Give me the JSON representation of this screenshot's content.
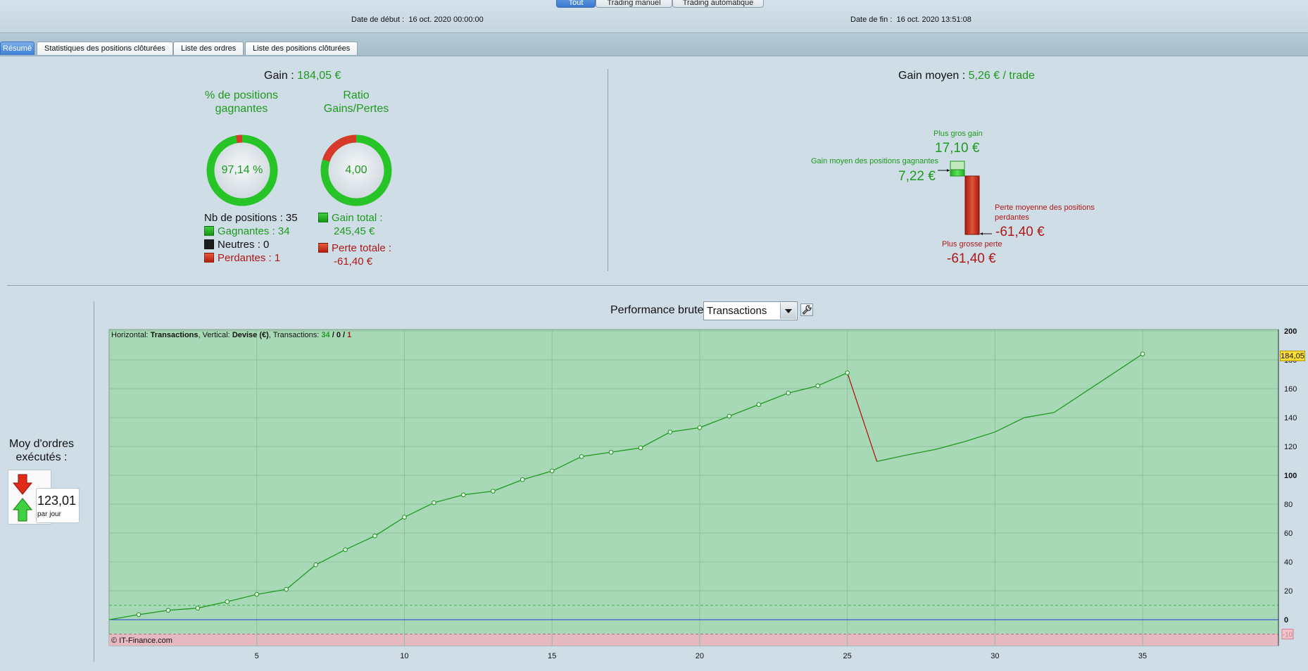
{
  "header": {
    "modes": [
      {
        "label": "Tout",
        "active": true
      },
      {
        "label": "Trading manuel",
        "active": false
      },
      {
        "label": "Trading automatique",
        "active": false
      }
    ],
    "start_label": "Date de début :",
    "start_value": "16 oct. 2020 00:00:00",
    "end_label": "Date de fin :",
    "end_value": "16 oct. 2020 13:51:08"
  },
  "tabs": [
    {
      "label": "Résumé",
      "active": true
    },
    {
      "label": "Statistiques des positions clôturées",
      "active": false
    },
    {
      "label": "Liste des ordres",
      "active": false
    },
    {
      "label": "Liste des positions clôturées",
      "active": false
    }
  ],
  "summary": {
    "gain_label": "Gain :",
    "gain_value": "184,05 €",
    "winpct_title": "% de positions gagnantes",
    "winpct_value": "97,14 %",
    "winpct_fraction": 0.9714,
    "ratio_title": "Ratio Gains/Pertes",
    "ratio_value": "4,00",
    "ratio_loss_fraction": 0.2,
    "nb_positions": "Nb de positions : 35",
    "winners": "Gagnantes : 34",
    "neutral": "Neutres : 0",
    "losers": "Perdantes : 1",
    "gain_total_label": "Gain total :",
    "gain_total_value": "245,45 €",
    "loss_total_label": "Perte totale :",
    "loss_total_value": "-61,40 €",
    "avg_gain_label": "Gain moyen :",
    "avg_gain_value": "5,26 € / trade",
    "biggest_gain_label": "Plus gros gain",
    "biggest_gain_value": "17,10 €",
    "avg_win_label": "Gain moyen des positions gagnantes",
    "avg_win_value": "7,22 €",
    "avg_loss_label_1": "Perte moyenne des positions",
    "avg_loss_label_2": "perdantes",
    "avg_loss_value": "-61,40 €",
    "biggest_loss_label": "Plus grosse perte",
    "biggest_loss_value": "-61,40 €",
    "colors": {
      "gain": "#1e9a1e",
      "loss": "#b01818"
    }
  },
  "orders": {
    "label": "Moy d'ordres exécutés :",
    "value": "123,01",
    "unit": "par jour"
  },
  "performance": {
    "title": "Performance brute",
    "select_value": "Transactions",
    "info_horizontal_label": "Horizontal:",
    "info_horizontal_value": "Transactions",
    "info_vertical_label": ", Vertical:",
    "info_vertical_value": "Devise (€)",
    "info_trans_label": ", Transactions:",
    "info_trans_win": "34",
    "info_trans_sep1": " / ",
    "info_trans_neutral": "0",
    "info_trans_sep2": " / ",
    "info_trans_loss": "1",
    "copyright": "© IT-Finance.com",
    "last_value_badge": "184,05"
  },
  "chart_data": {
    "type": "line",
    "title": "",
    "xlabel": "Transactions",
    "ylabel": "Devise (€)",
    "xlim": [
      0,
      39.6
    ],
    "ylim": [
      -18,
      201
    ],
    "x_ticks": [
      5,
      10,
      15,
      20,
      25,
      30,
      35
    ],
    "y_ticks": [
      200,
      180,
      160,
      140,
      120,
      100,
      80,
      60,
      40,
      20,
      0,
      -10
    ],
    "y_tick_labels": [
      "200",
      "180",
      "160",
      "140",
      "120",
      "100",
      "80",
      "60",
      "40",
      "20",
      "0",
      "-10"
    ],
    "upper_threshold": 10,
    "lower_threshold": -10,
    "series": [
      {
        "x": [
          0,
          1,
          2,
          3,
          4,
          5,
          6,
          7,
          8,
          9,
          10,
          11,
          12,
          13,
          14,
          15,
          16,
          17,
          18,
          19,
          20,
          21,
          22,
          23,
          24,
          25,
          26,
          27,
          28,
          29,
          30,
          31,
          32,
          33,
          34,
          35
        ],
        "y": [
          0,
          3.5,
          6.5,
          8,
          12.5,
          17.5,
          21,
          38,
          48.5,
          58,
          71,
          81,
          86.5,
          89,
          97,
          103,
          113,
          116,
          119,
          130,
          133,
          141,
          149,
          157,
          162,
          171,
          109.6,
          114,
          118,
          123.5,
          130,
          140,
          143.5,
          157,
          170.5,
          184.05
        ],
        "markers_at": [
          1,
          2,
          3,
          4,
          5,
          6,
          7,
          8,
          9,
          10,
          11,
          12,
          13,
          14,
          15,
          16,
          17,
          18,
          19,
          20,
          21,
          22,
          23,
          24,
          25,
          35
        ]
      }
    ],
    "grid": true,
    "colors": {
      "up": "#1f9a1f",
      "down": "#b01818",
      "zero_line": "#1e3fd8",
      "plot_bg": "#a8d9b6",
      "loss_band": "#e6b8c2"
    }
  }
}
